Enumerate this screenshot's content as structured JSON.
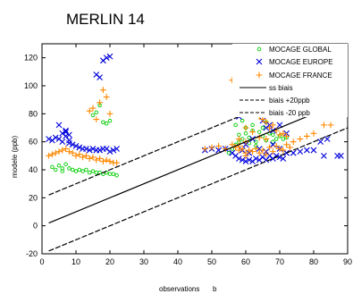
{
  "chart_data": {
    "type": "scatter",
    "title": "MERLIN 14",
    "xlabel": "observations",
    "xlabel_suffix": "b",
    "ylabel": "modele (ppb)",
    "xlim": [
      0,
      90
    ],
    "ylim": [
      -20,
      130
    ],
    "xticks": [
      "0",
      "10",
      "20",
      "30",
      "40",
      "50",
      "60",
      "70",
      "80",
      "90"
    ],
    "yticks": [
      "-20",
      "0",
      "20",
      "40",
      "60",
      "80",
      "100",
      "120"
    ],
    "legend_position": "top-right",
    "series": [
      {
        "name": "MOCAGE GLOBAL",
        "marker": "circle",
        "color": "#00cc00",
        "points": [
          [
            3,
            42
          ],
          [
            4,
            40
          ],
          [
            5,
            43
          ],
          [
            6,
            41
          ],
          [
            6,
            39
          ],
          [
            7,
            44
          ],
          [
            8,
            41
          ],
          [
            9,
            40
          ],
          [
            10,
            39
          ],
          [
            11,
            40
          ],
          [
            12,
            39
          ],
          [
            13,
            40
          ],
          [
            14,
            38
          ],
          [
            15,
            39
          ],
          [
            16,
            38
          ],
          [
            17,
            38
          ],
          [
            18,
            37
          ],
          [
            19,
            38
          ],
          [
            20,
            37
          ],
          [
            21,
            37
          ],
          [
            22,
            36
          ],
          [
            15,
            79
          ],
          [
            16,
            81
          ],
          [
            18,
            74
          ],
          [
            19,
            73
          ],
          [
            20,
            75
          ],
          [
            17,
            86
          ],
          [
            55,
            52
          ],
          [
            56,
            55
          ],
          [
            57,
            58
          ],
          [
            58,
            60
          ],
          [
            58,
            65
          ],
          [
            59,
            62
          ],
          [
            60,
            66
          ],
          [
            60,
            70
          ],
          [
            61,
            63
          ],
          [
            62,
            68
          ],
          [
            62,
            72
          ],
          [
            63,
            60
          ],
          [
            64,
            67
          ],
          [
            65,
            64
          ],
          [
            65,
            70
          ],
          [
            66,
            74
          ],
          [
            67,
            66
          ],
          [
            68,
            65
          ],
          [
            69,
            62
          ],
          [
            70,
            64
          ],
          [
            57,
            72
          ],
          [
            59,
            75
          ],
          [
            61,
            59
          ],
          [
            63,
            57
          ],
          [
            66,
            61
          ],
          [
            68,
            60
          ],
          [
            71,
            62
          ],
          [
            72,
            63
          ]
        ]
      },
      {
        "name": "MOCAGE EUROPE",
        "marker": "x",
        "color": "#0000dd",
        "points": [
          [
            2,
            62
          ],
          [
            3,
            61
          ],
          [
            4,
            63
          ],
          [
            5,
            62
          ],
          [
            6,
            60
          ],
          [
            6,
            66
          ],
          [
            7,
            64
          ],
          [
            7,
            67
          ],
          [
            8,
            61
          ],
          [
            8,
            59
          ],
          [
            9,
            58
          ],
          [
            10,
            57
          ],
          [
            11,
            56
          ],
          [
            12,
            55
          ],
          [
            13,
            55
          ],
          [
            14,
            54
          ],
          [
            15,
            55
          ],
          [
            16,
            54
          ],
          [
            17,
            54
          ],
          [
            18,
            55
          ],
          [
            19,
            55
          ],
          [
            20,
            53
          ],
          [
            21,
            54
          ],
          [
            22,
            55
          ],
          [
            5,
            72
          ],
          [
            7,
            68
          ],
          [
            8,
            65
          ],
          [
            16,
            108
          ],
          [
            17,
            106
          ],
          [
            18,
            118
          ],
          [
            19,
            120
          ],
          [
            20,
            121
          ],
          [
            48,
            54
          ],
          [
            50,
            55
          ],
          [
            52,
            54
          ],
          [
            54,
            55
          ],
          [
            56,
            52
          ],
          [
            57,
            50
          ],
          [
            58,
            48
          ],
          [
            59,
            47
          ],
          [
            60,
            46
          ],
          [
            61,
            47
          ],
          [
            62,
            46
          ],
          [
            63,
            48
          ],
          [
            64,
            47
          ],
          [
            65,
            49
          ],
          [
            66,
            47
          ],
          [
            67,
            50
          ],
          [
            68,
            48
          ],
          [
            69,
            50
          ],
          [
            70,
            49
          ],
          [
            71,
            48
          ],
          [
            72,
            52
          ],
          [
            74,
            52
          ],
          [
            76,
            53
          ],
          [
            78,
            54
          ],
          [
            80,
            54
          ],
          [
            82,
            60
          ],
          [
            84,
            62
          ],
          [
            88,
            50
          ],
          [
            87,
            50
          ],
          [
            83,
            50
          ],
          [
            57,
            115
          ],
          [
            57,
            100
          ],
          [
            58,
            105
          ],
          [
            59,
            108
          ],
          [
            60,
            110
          ],
          [
            58,
            78
          ],
          [
            60,
            96
          ],
          [
            61,
            86
          ],
          [
            62,
            82
          ],
          [
            63,
            95
          ],
          [
            64,
            90
          ],
          [
            65,
            75
          ],
          [
            66,
            70
          ],
          [
            67,
            72
          ],
          [
            68,
            68
          ],
          [
            70,
            72
          ],
          [
            72,
            66
          ],
          [
            62,
            62
          ],
          [
            60,
            58
          ],
          [
            64,
            55
          ],
          [
            66,
            53
          ],
          [
            68,
            58
          ],
          [
            70,
            55
          ],
          [
            61,
            52
          ],
          [
            59,
            54
          ]
        ]
      },
      {
        "name": "MOCAGE FRANCE",
        "marker": "plus",
        "color": "#ff8800",
        "points": [
          [
            2,
            50
          ],
          [
            3,
            51
          ],
          [
            4,
            52
          ],
          [
            5,
            53
          ],
          [
            6,
            54
          ],
          [
            7,
            55
          ],
          [
            8,
            53
          ],
          [
            9,
            52
          ],
          [
            10,
            50
          ],
          [
            11,
            51
          ],
          [
            12,
            49
          ],
          [
            13,
            50
          ],
          [
            14,
            48
          ],
          [
            15,
            49
          ],
          [
            16,
            47
          ],
          [
            17,
            48
          ],
          [
            18,
            46
          ],
          [
            19,
            47
          ],
          [
            20,
            46
          ],
          [
            21,
            45
          ],
          [
            22,
            45
          ],
          [
            14,
            82
          ],
          [
            15,
            84
          ],
          [
            16,
            76
          ],
          [
            17,
            88
          ],
          [
            18,
            97
          ],
          [
            19,
            92
          ],
          [
            20,
            80
          ],
          [
            48,
            55
          ],
          [
            50,
            56
          ],
          [
            52,
            57
          ],
          [
            54,
            55
          ],
          [
            56,
            58
          ],
          [
            57,
            56
          ],
          [
            58,
            54
          ],
          [
            58,
            57
          ],
          [
            59,
            55
          ],
          [
            60,
            50
          ],
          [
            60,
            52
          ],
          [
            61,
            54
          ],
          [
            62,
            53
          ],
          [
            63,
            55
          ],
          [
            64,
            52
          ],
          [
            65,
            54
          ],
          [
            66,
            51
          ],
          [
            67,
            56
          ],
          [
            68,
            53
          ],
          [
            69,
            57
          ],
          [
            70,
            55
          ],
          [
            71,
            54
          ],
          [
            72,
            58
          ],
          [
            73,
            56
          ],
          [
            74,
            60
          ],
          [
            76,
            62
          ],
          [
            78,
            64
          ],
          [
            80,
            66
          ],
          [
            83,
            72
          ],
          [
            85,
            72
          ],
          [
            88,
            80
          ],
          [
            89,
            81
          ],
          [
            56,
            104
          ],
          [
            57,
            98
          ],
          [
            58,
            95
          ],
          [
            59,
            98
          ],
          [
            60,
            90
          ],
          [
            61,
            85
          ],
          [
            62,
            82
          ],
          [
            63,
            80
          ],
          [
            64,
            78
          ],
          [
            65,
            76
          ],
          [
            66,
            74
          ],
          [
            67,
            70
          ],
          [
            68,
            72
          ],
          [
            69,
            68
          ],
          [
            70,
            65
          ],
          [
            71,
            66
          ],
          [
            72,
            64
          ],
          [
            60,
            70
          ],
          [
            62,
            67
          ],
          [
            64,
            63
          ],
          [
            66,
            62
          ],
          [
            58,
            62
          ],
          [
            60,
            60
          ]
        ]
      }
    ],
    "lines": [
      {
        "name": "ss biais",
        "style": "solid",
        "x": [
          2,
          90
        ],
        "y": [
          2,
          90
        ]
      },
      {
        "name": "biais +20ppb",
        "style": "dashed",
        "x": [
          2,
          90
        ],
        "y": [
          22,
          110
        ]
      },
      {
        "name": "biais -20 ppb",
        "style": "dashed",
        "x": [
          2,
          90
        ],
        "y": [
          -18,
          70
        ]
      }
    ]
  }
}
